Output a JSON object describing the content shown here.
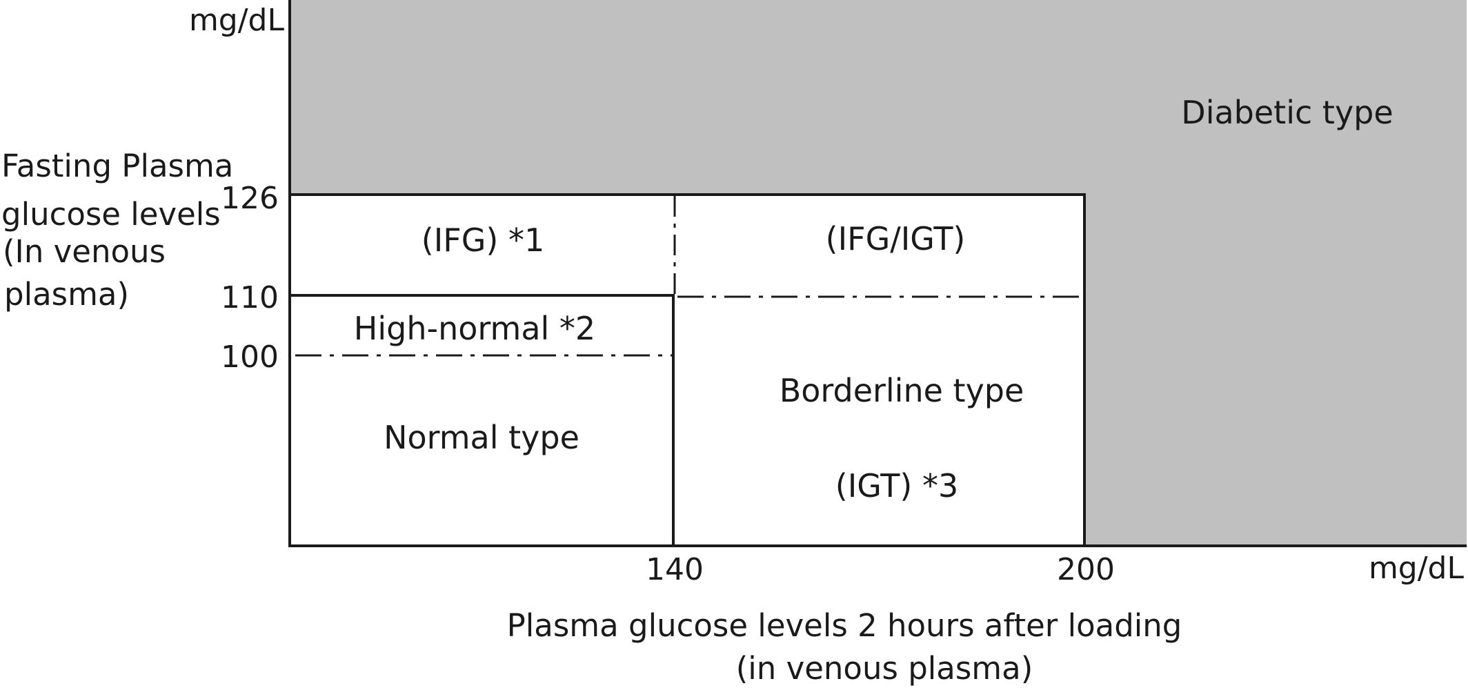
{
  "axes": {
    "y_unit": "mg/dL",
    "x_unit": "mg/dL",
    "y_title": [
      "Fasting Plasma",
      "glucose levels",
      "(In venous",
      "plasma)"
    ],
    "x_title": [
      "Plasma glucose levels 2 hours after loading",
      "(in venous plasma)"
    ],
    "y_ticks": [
      "126",
      "110",
      "100"
    ],
    "x_ticks": [
      "140",
      "200"
    ]
  },
  "regions": {
    "diabetic": "Diabetic type",
    "ifg": "(IFG) *1",
    "ifg_igt": "(IFG/IGT)",
    "high_normal": "High-normal *2",
    "normal": "Normal type",
    "borderline": "Borderline type",
    "igt": "(IGT) *3"
  },
  "colors": {
    "diabetic_fill": "#c0c0c0",
    "line": "#1a1a1a",
    "background": "#ffffff"
  }
}
